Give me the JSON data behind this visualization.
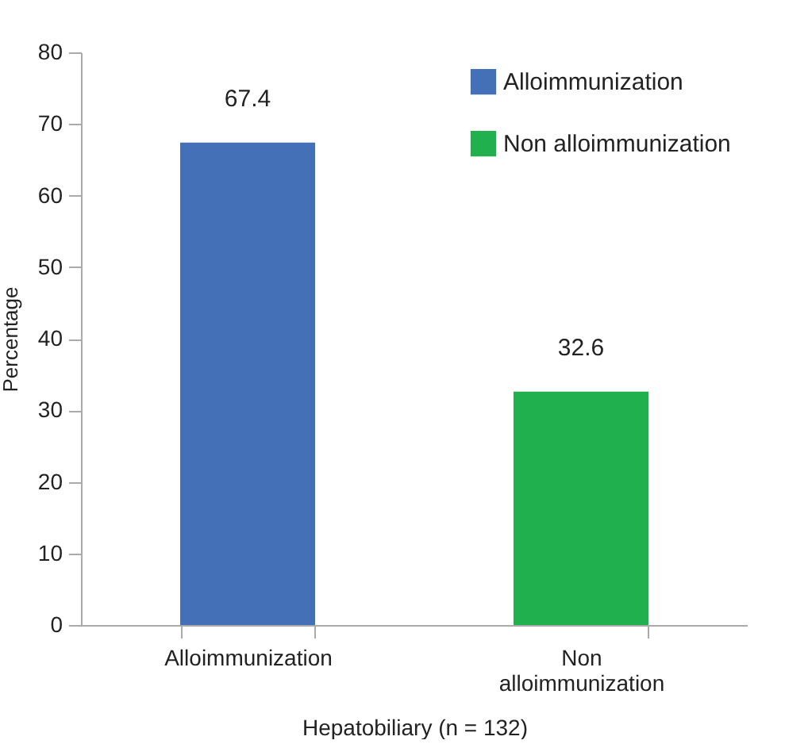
{
  "chart_data": {
    "type": "bar",
    "xlabel": "Hepatobiliary (n = 132)",
    "ylabel": "Percentage",
    "categories": [
      "Alloimmunization",
      "Non alloimmunization"
    ],
    "series": [
      {
        "name": "Alloimmunization",
        "color": "#4470b8",
        "values": [
          67.4,
          null
        ]
      },
      {
        "name": "Non alloimmunization",
        "color": "#21b04e",
        "values": [
          null,
          32.6
        ]
      }
    ],
    "ylim": [
      0,
      80
    ],
    "yticks": [
      0,
      10,
      20,
      30,
      40,
      50,
      60,
      70,
      80
    ],
    "data_labels": true,
    "legend": "top right",
    "grid": false
  }
}
